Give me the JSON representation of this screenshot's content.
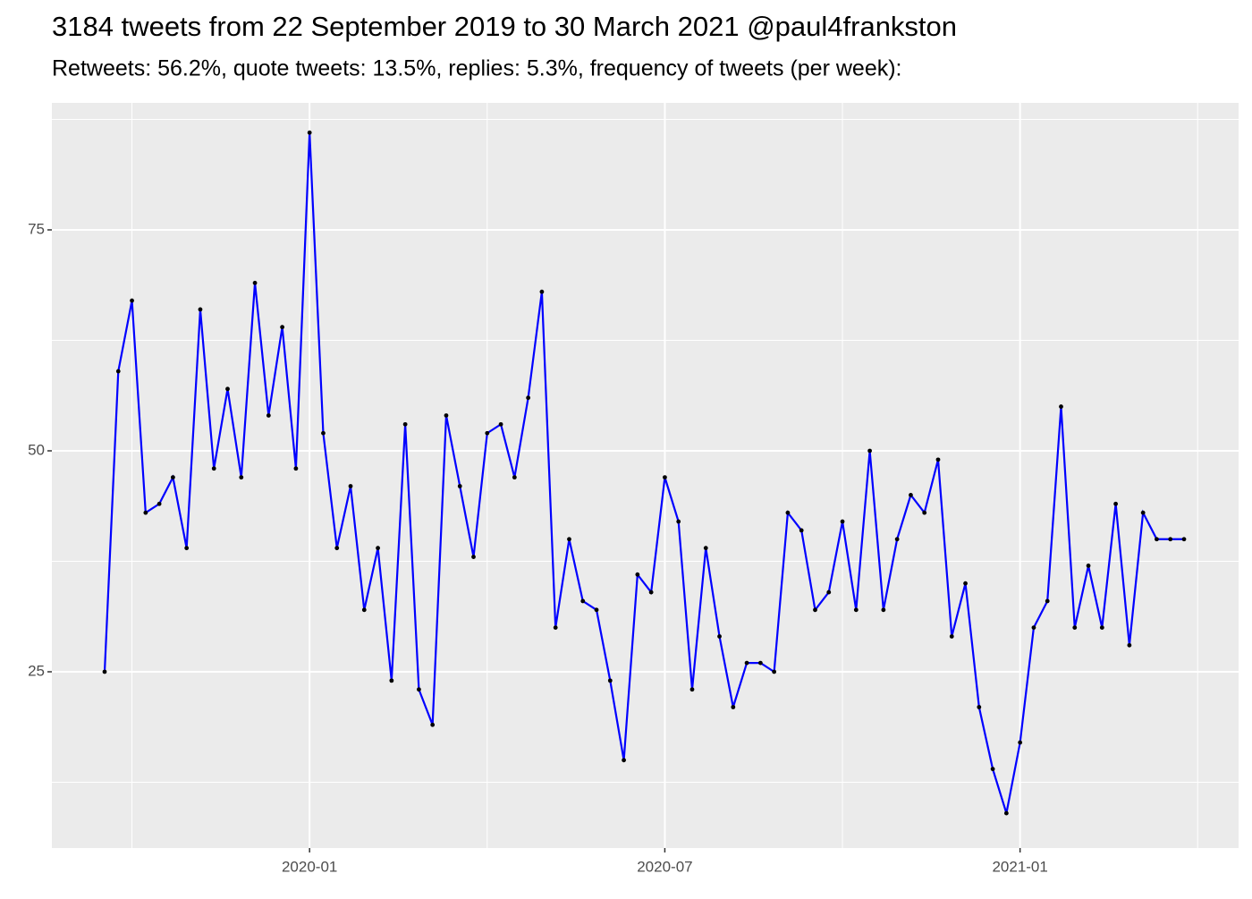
{
  "chart_data": {
    "type": "line",
    "title": "3184 tweets from 22 September 2019 to 30 March 2021 @paul4frankston",
    "subtitle": "Retweets: 56.2%, quote tweets: 13.5%, replies: 5.3%, frequency of tweets (per week):",
    "categories": [
      null,
      null,
      null,
      null,
      null,
      null,
      null,
      null,
      null,
      null,
      null,
      null,
      null,
      null,
      null,
      "2020-01",
      null,
      null,
      null,
      null,
      null,
      null,
      null,
      null,
      null,
      null,
      null,
      null,
      null,
      null,
      null,
      null,
      null,
      null,
      null,
      null,
      null,
      null,
      null,
      null,
      null,
      "2020-07",
      null,
      null,
      null,
      null,
      null,
      null,
      null,
      null,
      null,
      null,
      null,
      null,
      null,
      null,
      null,
      null,
      null,
      null,
      null,
      null,
      null,
      null,
      null,
      null,
      null,
      "2021-01",
      null,
      null,
      null,
      null,
      null,
      null,
      null,
      null,
      null,
      null,
      null,
      null
    ],
    "values": [
      25,
      59,
      67,
      43,
      44,
      47,
      39,
      66,
      48,
      57,
      47,
      69,
      54,
      64,
      48,
      86,
      52,
      39,
      46,
      32,
      39,
      24,
      53,
      23,
      19,
      54,
      46,
      38,
      52,
      53,
      47,
      56,
      68,
      30,
      40,
      33,
      32,
      24,
      15,
      36,
      34,
      47,
      42,
      23,
      39,
      29,
      21,
      26,
      26,
      25,
      43,
      41,
      32,
      34,
      42,
      32,
      50,
      32,
      40,
      45,
      43,
      49,
      29,
      35,
      21,
      14,
      9,
      17,
      30,
      33,
      55,
      30,
      37,
      30,
      44,
      28,
      43,
      40,
      40,
      40
    ],
    "color": "#0000ff",
    "ylim": [
      5.06,
      89.37
    ],
    "yticks": [
      25,
      50,
      75
    ],
    "grid": true
  }
}
